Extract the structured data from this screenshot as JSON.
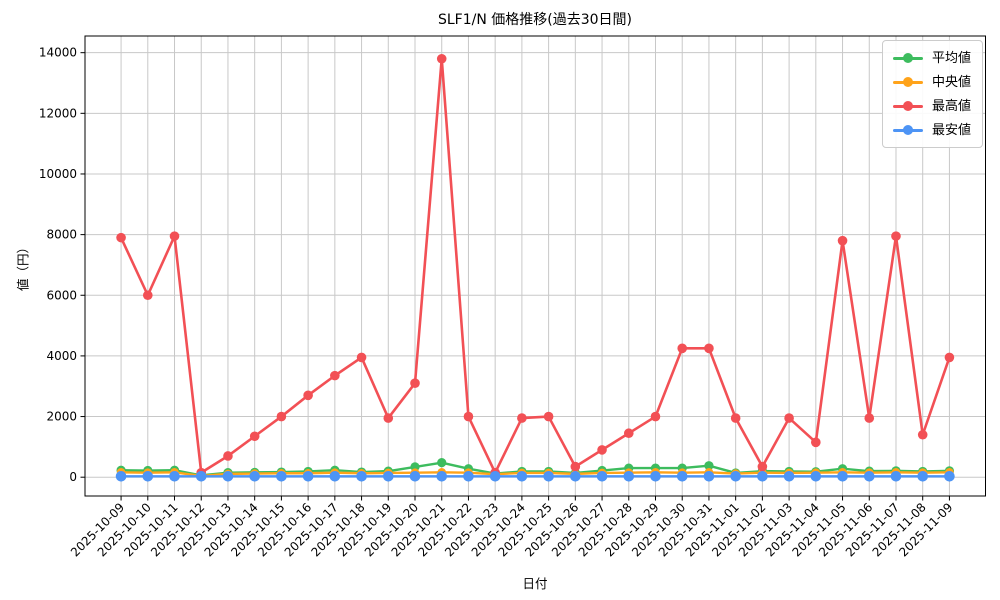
{
  "figure": {
    "title": "SLF1/N 価格推移(過去30日間)",
    "xlabel": "日付",
    "ylabel": "値（円）"
  },
  "legend": {
    "position": "upper right",
    "items": [
      {
        "key": "average",
        "label": "平均値",
        "color": "#3dbc5e"
      },
      {
        "key": "median",
        "label": "中央値",
        "color": "#ffa31a"
      },
      {
        "key": "max",
        "label": "最高値",
        "color": "#f25055"
      },
      {
        "key": "min",
        "label": "最安値",
        "color": "#4d94f5"
      }
    ]
  },
  "style": {
    "grid_color": "#c8c8c8",
    "axis_color": "#000000",
    "background": "#ffffff"
  },
  "chart_data": {
    "type": "line",
    "title": "SLF1/N 価格推移(過去30日間)",
    "xlabel": "日付",
    "ylabel": "値（円）",
    "grid": true,
    "legend_position": "upper right",
    "ylim": [
      -620,
      14550
    ],
    "yticks": [
      0,
      2000,
      4000,
      6000,
      8000,
      10000,
      12000,
      14000
    ],
    "x": [
      "2025-10-09",
      "2025-10-10",
      "2025-10-11",
      "2025-10-12",
      "2025-10-13",
      "2025-10-14",
      "2025-10-15",
      "2025-10-16",
      "2025-10-17",
      "2025-10-18",
      "2025-10-19",
      "2025-10-20",
      "2025-10-21",
      "2025-10-22",
      "2025-10-23",
      "2025-10-24",
      "2025-10-25",
      "2025-10-26",
      "2025-10-27",
      "2025-10-28",
      "2025-10-29",
      "2025-10-30",
      "2025-10-31",
      "2025-11-01",
      "2025-11-02",
      "2025-11-03",
      "2025-11-04",
      "2025-11-05",
      "2025-11-06",
      "2025-11-07",
      "2025-11-08",
      "2025-11-09"
    ],
    "series": [
      {
        "key": "average",
        "name": "平均値",
        "color": "#3dbc5e",
        "values": [
          230,
          220,
          230,
          60,
          150,
          160,
          170,
          190,
          230,
          170,
          200,
          340,
          480,
          280,
          120,
          190,
          190,
          140,
          220,
          300,
          300,
          300,
          380,
          140,
          200,
          190,
          180,
          280,
          200,
          210,
          190,
          210
        ]
      },
      {
        "key": "median",
        "name": "中央値",
        "color": "#ffa31a",
        "values": [
          160,
          150,
          160,
          40,
          110,
          120,
          130,
          130,
          150,
          130,
          140,
          150,
          160,
          150,
          100,
          140,
          140,
          110,
          140,
          150,
          160,
          150,
          160,
          120,
          150,
          140,
          150,
          160,
          150,
          160,
          150,
          160
        ]
      },
      {
        "key": "max",
        "name": "最高値",
        "color": "#f25055",
        "values": [
          7900,
          6000,
          7950,
          150,
          700,
          1350,
          2000,
          2700,
          3350,
          3950,
          1950,
          3100,
          13800,
          2000,
          150,
          1950,
          2000,
          350,
          900,
          1450,
          2000,
          4250,
          4250,
          1950,
          350,
          1950,
          1150,
          7800,
          1950,
          7950,
          1400,
          3950
        ]
      },
      {
        "key": "min",
        "name": "最安値",
        "color": "#4d94f5",
        "values": [
          30,
          30,
          30,
          30,
          30,
          30,
          30,
          30,
          30,
          30,
          30,
          30,
          30,
          30,
          30,
          30,
          30,
          30,
          30,
          30,
          30,
          30,
          30,
          30,
          30,
          30,
          30,
          30,
          30,
          30,
          30,
          30
        ]
      }
    ]
  }
}
